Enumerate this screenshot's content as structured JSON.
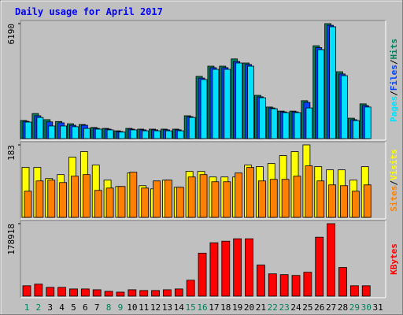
{
  "chart_data": [
    {
      "type": "bar",
      "title": "Daily usage for April 2017",
      "ylim": [
        0,
        6190
      ],
      "yticks": [
        6190
      ],
      "legend_separator": "/",
      "series": [
        {
          "name": "Hits",
          "color": "#00805c",
          "values": [
            975,
            1350,
            1020,
            920,
            800,
            760,
            600,
            550,
            420,
            550,
            510,
            510,
            510,
            510,
            1230,
            3350,
            3900,
            3900,
            4290,
            4070,
            2330,
            1700,
            1480,
            1480,
            2040,
            5000,
            6190,
            3600,
            1100,
            1870,
            null
          ]
        },
        {
          "name": "Files",
          "color": "#0040ff",
          "values": [
            930,
            1230,
            900,
            850,
            720,
            720,
            550,
            510,
            380,
            510,
            470,
            470,
            470,
            470,
            1180,
            3260,
            3820,
            3820,
            4150,
            3990,
            2250,
            1650,
            1440,
            1440,
            1950,
            4900,
            6100,
            3480,
            1020,
            1780,
            null
          ]
        },
        {
          "name": "Pages",
          "color": "#00e0ff",
          "values": [
            890,
            1140,
            680,
            680,
            640,
            550,
            510,
            470,
            350,
            470,
            420,
            420,
            420,
            420,
            1140,
            3180,
            3730,
            3730,
            4070,
            3900,
            2200,
            1610,
            1400,
            1400,
            1650,
            4790,
            6020,
            3390,
            970,
            1700,
            null
          ]
        }
      ]
    },
    {
      "type": "bar",
      "ylim": [
        0,
        183
      ],
      "yticks": [
        183
      ],
      "legend_separator": "/",
      "series": [
        {
          "name": "Visits",
          "color": "#ffff00",
          "values": [
            126,
            126,
            98,
            108,
            152,
            166,
            132,
            94,
            78,
            112,
            80,
            72,
            94,
            76,
            116,
            116,
            102,
            102,
            102,
            132,
            128,
            136,
            156,
            166,
            183,
            128,
            120,
            120,
            94,
            128,
            null
          ]
        },
        {
          "name": "Sites",
          "color": "#ff8000",
          "values": [
            66,
            92,
            94,
            88,
            104,
            108,
            68,
            74,
            78,
            114,
            74,
            92,
            94,
            76,
            102,
            108,
            90,
            90,
            112,
            126,
            92,
            96,
            96,
            104,
            130,
            92,
            82,
            80,
            66,
            82,
            null
          ]
        }
      ]
    },
    {
      "type": "bar",
      "ylim": [
        0,
        178918
      ],
      "yticks": [
        178918
      ],
      "categories": [
        "1",
        "2",
        "3",
        "4",
        "5",
        "6",
        "7",
        "8",
        "9",
        "10",
        "11",
        "12",
        "13",
        "14",
        "15",
        "16",
        "17",
        "18",
        "19",
        "20",
        "21",
        "22",
        "23",
        "24",
        "25",
        "26",
        "27",
        "28",
        "29",
        "30",
        "31"
      ],
      "category_color": "#000000",
      "highlight_color": "#00805c",
      "highlight_indices": [
        0,
        1,
        7,
        8,
        14,
        15,
        21,
        22,
        28,
        29
      ],
      "series": [
        {
          "name": "KBytes",
          "color": "#ff0000",
          "values": [
            25600,
            29500,
            21600,
            21600,
            17700,
            17700,
            15700,
            11800,
            9800,
            15700,
            13800,
            13800,
            15700,
            17700,
            39300,
            106200,
            131700,
            135700,
            141600,
            141600,
            76700,
            55000,
            53100,
            51100,
            59000,
            145500,
            178918,
            70800,
            25600,
            25600,
            null
          ]
        }
      ]
    }
  ]
}
